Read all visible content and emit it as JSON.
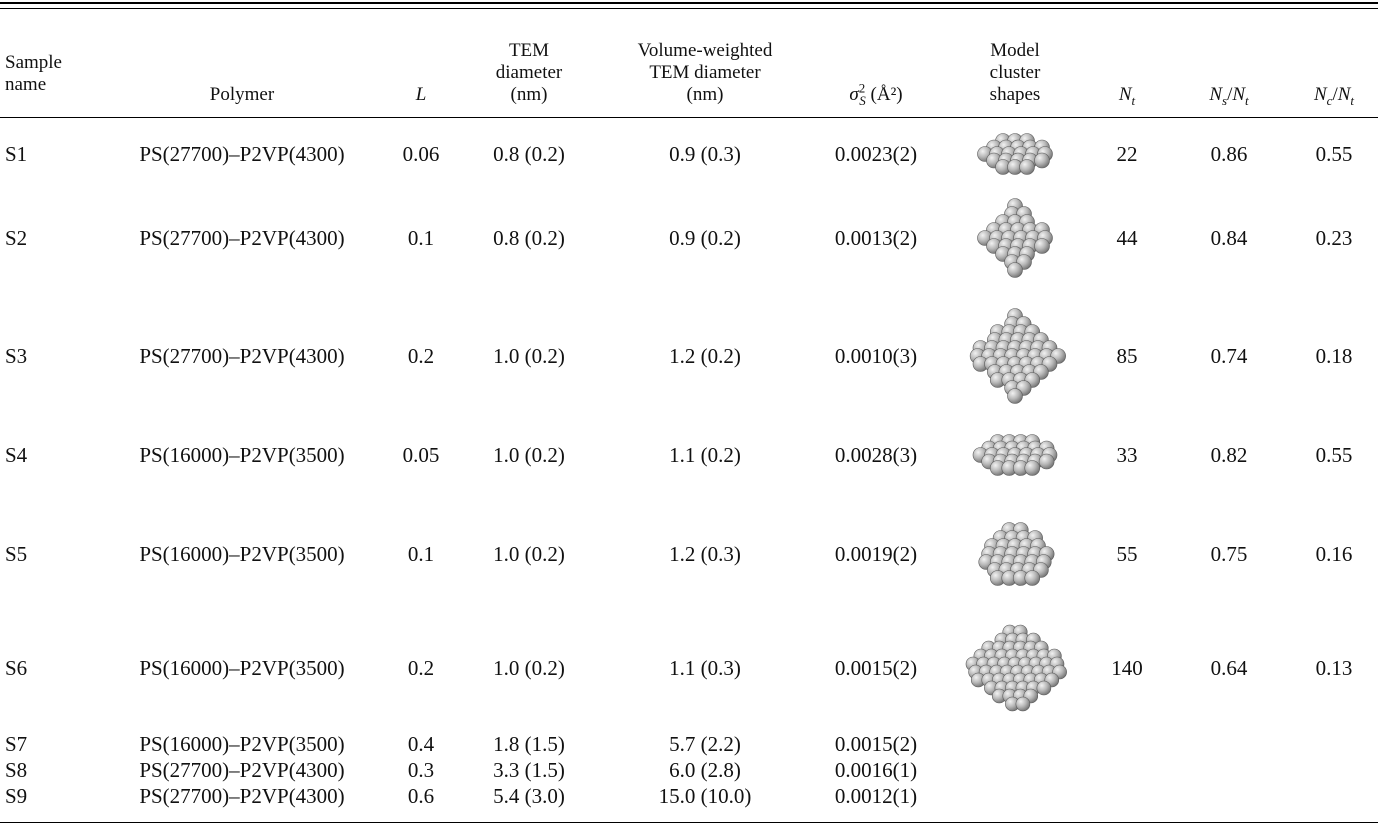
{
  "header": {
    "sample": "Sample\nname",
    "polymer": "Polymer",
    "L": "L",
    "tem_diam": "TEM\ndiameter\n(nm)",
    "vw_diam": "Volume-weighted\nTEM diameter\n(nm)",
    "sigma_unit": "(Å²)",
    "model": "Model\ncluster\nshapes",
    "Nt": "N",
    "Ns": "N",
    "Nc": "N"
  },
  "rows": [
    {
      "name": "S1",
      "polymer": "PS(27700)–P2VP(4300)",
      "L": "0.06",
      "tem": "0.8 (0.2)",
      "vw": "0.9 (0.3)",
      "sigma": "0.0023(2)",
      "shape": "flat-cluster-22",
      "Nt": "22",
      "NsNt": "0.86",
      "NcNt": "0.55"
    },
    {
      "name": "S2",
      "polymer": "PS(27700)–P2VP(4300)",
      "L": "0.1",
      "tem": "0.8 (0.2)",
      "vw": "0.9 (0.2)",
      "sigma": "0.0013(2)",
      "shape": "octahedral-cluster-44",
      "Nt": "44",
      "NsNt": "0.84",
      "NcNt": "0.23"
    },
    {
      "name": "S3",
      "polymer": "PS(27700)–P2VP(4300)",
      "L": "0.2",
      "tem": "1.0 (0.2)",
      "vw": "1.2 (0.2)",
      "sigma": "0.0010(3)",
      "shape": "octahedral-cluster-85",
      "Nt": "85",
      "NsNt": "0.74",
      "NcNt": "0.18"
    },
    {
      "name": "S4",
      "polymer": "PS(16000)–P2VP(3500)",
      "L": "0.05",
      "tem": "1.0 (0.2)",
      "vw": "1.1 (0.2)",
      "sigma": "0.0028(3)",
      "shape": "flat-cluster-33",
      "Nt": "33",
      "NsNt": "0.82",
      "NcNt": "0.55"
    },
    {
      "name": "S5",
      "polymer": "PS(16000)–P2VP(3500)",
      "L": "0.1",
      "tem": "1.0 (0.2)",
      "vw": "1.2 (0.3)",
      "sigma": "0.0019(2)",
      "shape": "cuboid-cluster-55",
      "Nt": "55",
      "NsNt": "0.75",
      "NcNt": "0.16"
    },
    {
      "name": "S6",
      "polymer": "PS(16000)–P2VP(3500)",
      "L": "0.2",
      "tem": "1.0 (0.2)",
      "vw": "1.1 (0.3)",
      "sigma": "0.0015(2)",
      "shape": "round-cluster-140",
      "Nt": "140",
      "NsNt": "0.64",
      "NcNt": "0.13"
    },
    {
      "name": "S7",
      "polymer": "PS(16000)–P2VP(3500)",
      "L": "0.4",
      "tem": "1.8 (1.5)",
      "vw": "5.7 (2.2)",
      "sigma": "0.0015(2)",
      "shape": "",
      "Nt": "",
      "NsNt": "",
      "NcNt": ""
    },
    {
      "name": "S8",
      "polymer": "PS(27700)–P2VP(4300)",
      "L": "0.3",
      "tem": "3.3 (1.5)",
      "vw": "6.0 (2.8)",
      "sigma": "0.0016(1)",
      "shape": "",
      "Nt": "",
      "NsNt": "",
      "NcNt": ""
    },
    {
      "name": "S9",
      "polymer": "PS(27700)–P2VP(4300)",
      "L": "0.6",
      "tem": "5.4 (3.0)",
      "vw": "15.0 (10.0)",
      "sigma": "0.0012(1)",
      "shape": "",
      "Nt": "",
      "NsNt": "",
      "NcNt": ""
    }
  ],
  "colors": {
    "sphere_light": "#e6e6e6",
    "sphere_mid": "#b3b3b3",
    "sphere_dark": "#6f6f6f"
  }
}
